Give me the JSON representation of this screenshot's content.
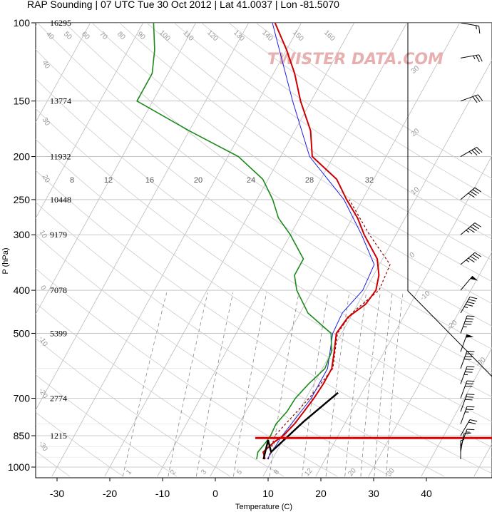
{
  "title": "RAP Sounding | 07 UTC Tue 30 Oct 2012 | Lat 41.0037 | Lon -81.5070",
  "watermark": "TWISTER DATA.COM",
  "colors": {
    "temperature": "#cc0000",
    "dewpoint": "#1a8a1a",
    "virtual_temp": "#2020dd",
    "parcel": "#8b0000",
    "hodograph": "#000000",
    "grid": "#bbbbbb",
    "mixing": "#888888",
    "surface_marker": "#e00000"
  },
  "chart_data": {
    "type": "skew-t",
    "xlabel": "Temperature (C)",
    "ylabel": "P (hPa)",
    "xlim": [
      -34,
      52
    ],
    "ylim": [
      1025,
      100
    ],
    "x_ticks": [
      -30,
      -20,
      -10,
      0,
      10,
      20,
      30,
      40
    ],
    "pressure_ticks": [
      1000,
      850,
      700,
      500,
      400,
      300,
      250,
      200,
      150,
      100
    ],
    "height_labels": [
      {
        "p": 100,
        "h": "16295"
      },
      {
        "p": 150,
        "h": "13774"
      },
      {
        "p": 200,
        "h": "11932"
      },
      {
        "p": 250,
        "h": "10448"
      },
      {
        "p": 300,
        "h": "9179"
      },
      {
        "p": 400,
        "h": "7078"
      },
      {
        "p": 500,
        "h": "5399"
      },
      {
        "p": 700,
        "h": "2774"
      },
      {
        "p": 850,
        "h": "1215"
      }
    ],
    "isotherm_labels": [
      "40",
      "50",
      "60",
      "70",
      "80",
      "90",
      "100",
      "110",
      "120",
      "130",
      "140",
      "150",
      "160"
    ],
    "dry_adiabat_labels": [
      "40",
      "30",
      "20",
      "10",
      "0",
      "-10",
      "-20",
      "-30"
    ],
    "mixing_ratio_labels": [
      "8",
      "12",
      "16",
      "20",
      "24",
      "28",
      "32"
    ],
    "moist_adiabat_labels": [
      "1",
      "2",
      "3",
      "5",
      "8",
      "12",
      "20",
      "30"
    ],
    "temperature": [
      {
        "p": 960,
        "t": 8.6
      },
      {
        "p": 925,
        "t": 7.5
      },
      {
        "p": 880,
        "t": 8.5
      },
      {
        "p": 850,
        "t": 9.6
      },
      {
        "p": 800,
        "t": 10.5
      },
      {
        "p": 750,
        "t": 11.0
      },
      {
        "p": 700,
        "t": 11.5
      },
      {
        "p": 650,
        "t": 11.8
      },
      {
        "p": 600,
        "t": 11.8
      },
      {
        "p": 550,
        "t": 10.5
      },
      {
        "p": 500,
        "t": 9.0
      },
      {
        "p": 460,
        "t": 9.5
      },
      {
        "p": 430,
        "t": 11.5
      },
      {
        "p": 400,
        "t": 12.0
      },
      {
        "p": 370,
        "t": 11.0
      },
      {
        "p": 340,
        "t": 9.0
      },
      {
        "p": 300,
        "t": 4.0
      },
      {
        "p": 275,
        "t": 1.0
      },
      {
        "p": 250,
        "t": -3.0
      },
      {
        "p": 225,
        "t": -7.0
      },
      {
        "p": 200,
        "t": -14.0
      },
      {
        "p": 175,
        "t": -17.0
      },
      {
        "p": 150,
        "t": -22.0
      },
      {
        "p": 130,
        "t": -26.0
      },
      {
        "p": 115,
        "t": -30.0
      },
      {
        "p": 100,
        "t": -35.0
      }
    ],
    "dewpoint": [
      {
        "p": 960,
        "t": 7.0
      },
      {
        "p": 925,
        "t": 6.5
      },
      {
        "p": 880,
        "t": 7.0
      },
      {
        "p": 850,
        "t": 7.2
      },
      {
        "p": 800,
        "t": 7.0
      },
      {
        "p": 750,
        "t": 7.8
      },
      {
        "p": 700,
        "t": 8.0
      },
      {
        "p": 650,
        "t": 9.0
      },
      {
        "p": 600,
        "t": 10.5
      },
      {
        "p": 550,
        "t": 10.0
      },
      {
        "p": 500,
        "t": 8.0
      },
      {
        "p": 450,
        "t": 1.5
      },
      {
        "p": 400,
        "t": -3.0
      },
      {
        "p": 370,
        "t": -5.0
      },
      {
        "p": 340,
        "t": -5.0
      },
      {
        "p": 300,
        "t": -10.0
      },
      {
        "p": 275,
        "t": -14.0
      },
      {
        "p": 250,
        "t": -17.0
      },
      {
        "p": 225,
        "t": -21.0
      },
      {
        "p": 200,
        "t": -28.0
      },
      {
        "p": 175,
        "t": -40.0
      },
      {
        "p": 150,
        "t": -53.0
      },
      {
        "p": 130,
        "t": -53.0
      },
      {
        "p": 115,
        "t": -55.0
      },
      {
        "p": 100,
        "t": -58.0
      }
    ],
    "virtual_temp": [
      {
        "p": 960,
        "t": 9.0
      },
      {
        "p": 850,
        "t": 9.4
      },
      {
        "p": 700,
        "t": 11.0
      },
      {
        "p": 600,
        "t": 11.0
      },
      {
        "p": 500,
        "t": 8.3
      },
      {
        "p": 450,
        "t": 8.0
      },
      {
        "p": 400,
        "t": 9.5
      },
      {
        "p": 350,
        "t": 9.0
      },
      {
        "p": 300,
        "t": 3.5
      },
      {
        "p": 250,
        "t": -3.5
      },
      {
        "p": 200,
        "t": -14.5
      },
      {
        "p": 150,
        "t": -23.5
      },
      {
        "p": 100,
        "t": -35.5
      }
    ],
    "parcel": [
      {
        "p": 960,
        "t": 9.2
      },
      {
        "p": 850,
        "t": 8.0
      },
      {
        "p": 700,
        "t": 10.6
      },
      {
        "p": 600,
        "t": 12.0
      },
      {
        "p": 500,
        "t": 9.2
      },
      {
        "p": 450,
        "t": 9.8
      },
      {
        "p": 400,
        "t": 12.6
      },
      {
        "p": 350,
        "t": 12.0
      },
      {
        "p": 300,
        "t": 5.0
      },
      {
        "p": 250,
        "t": -2.5
      }
    ],
    "hodograph": [
      {
        "x": 8.3,
        "y": 960
      },
      {
        "x": 7.2,
        "y": 870
      },
      {
        "x": 9.0,
        "y": 925
      },
      {
        "x": 12.0,
        "y": 790
      },
      {
        "x": 15.5,
        "y": 680
      }
    ],
    "surface_marker_p": 860,
    "wind_barbs": [
      {
        "p": 960,
        "dir": 180,
        "kt": 5
      },
      {
        "p": 925,
        "dir": 190,
        "kt": 10
      },
      {
        "p": 900,
        "dir": 200,
        "kt": 15
      },
      {
        "p": 850,
        "dir": 210,
        "kt": 20
      },
      {
        "p": 800,
        "dir": 200,
        "kt": 25
      },
      {
        "p": 750,
        "dir": 200,
        "kt": 30
      },
      {
        "p": 700,
        "dir": 200,
        "kt": 30
      },
      {
        "p": 650,
        "dir": 200,
        "kt": 35
      },
      {
        "p": 600,
        "dir": 200,
        "kt": 40
      },
      {
        "p": 550,
        "dir": 200,
        "kt": 50
      },
      {
        "p": 500,
        "dir": 200,
        "kt": 45
      },
      {
        "p": 450,
        "dir": 210,
        "kt": 45
      },
      {
        "p": 400,
        "dir": 220,
        "kt": 50
      },
      {
        "p": 350,
        "dir": 230,
        "kt": 45
      },
      {
        "p": 300,
        "dir": 230,
        "kt": 45
      },
      {
        "p": 250,
        "dir": 230,
        "kt": 40
      },
      {
        "p": 200,
        "dir": 240,
        "kt": 35
      },
      {
        "p": 150,
        "dir": 250,
        "kt": 30
      },
      {
        "p": 120,
        "dir": 260,
        "kt": 25
      },
      {
        "p": 100,
        "dir": 280,
        "kt": 15
      }
    ]
  }
}
